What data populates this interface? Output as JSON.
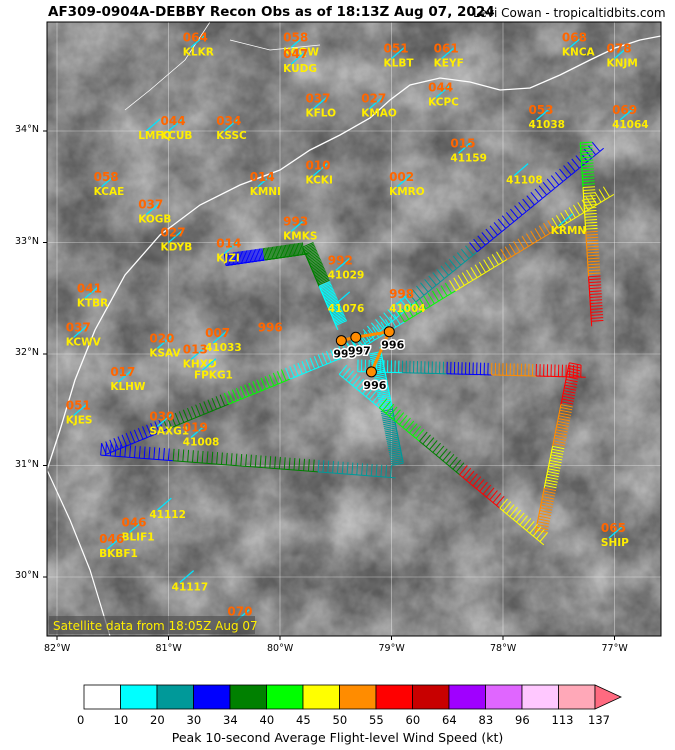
{
  "header": {
    "title": "AF309-0904A-DEBBY Recon Obs as of 18:13Z Aug 07, 2024",
    "credit": "Levi Cowan - tropicaltidbits.com"
  },
  "map": {
    "sat_caption": "Satellite data from 18:05Z Aug 07",
    "lat_labels": [
      "34°N",
      "33°N",
      "32°N",
      "31°N",
      "30°N"
    ],
    "lon_labels": [
      "82°W",
      "81°W",
      "80°W",
      "79°W",
      "78°W",
      "77°W"
    ],
    "colors": {
      "station_value": "#ff6600",
      "station_id": "#ffee00",
      "pressure_label": "#000000",
      "coast": "#ffffff"
    },
    "stations": [
      {
        "id": "KLKR",
        "val": "064",
        "lon": -80.8,
        "lat": 34.75
      },
      {
        "id": "KCQW",
        "val": "058",
        "lon": -79.9,
        "lat": 34.75
      },
      {
        "id": "KUDG",
        "val": "047",
        "lon": -79.9,
        "lat": 34.6
      },
      {
        "id": "KLBT",
        "val": "051",
        "lon": -79.0,
        "lat": 34.65
      },
      {
        "id": "KEYF",
        "val": "061",
        "lon": -78.55,
        "lat": 34.65
      },
      {
        "id": "KNCA",
        "val": "068",
        "lon": -77.4,
        "lat": 34.75
      },
      {
        "id": "KNJM",
        "val": "078",
        "lon": -77.0,
        "lat": 34.65
      },
      {
        "id": "KFLO",
        "val": "037",
        "lon": -79.7,
        "lat": 34.2
      },
      {
        "id": "KMAO",
        "val": "027",
        "lon": -79.2,
        "lat": 34.2
      },
      {
        "id": "KCPC",
        "val": "044",
        "lon": -78.6,
        "lat": 34.3
      },
      {
        "id": "41038",
        "val": "053",
        "lon": -77.7,
        "lat": 34.1
      },
      {
        "id": "41064",
        "val": "069",
        "lon": -76.95,
        "lat": 34.1
      },
      {
        "id": "KCUB",
        "val": "044",
        "lon": -81.0,
        "lat": 34.0
      },
      {
        "id": "KSSC",
        "val": "034",
        "lon": -80.5,
        "lat": 34.0
      },
      {
        "id": "LMFQ",
        "val": "",
        "lon": -81.2,
        "lat": 34.0
      },
      {
        "id": "KCAE",
        "val": "058",
        "lon": -81.6,
        "lat": 33.5
      },
      {
        "id": "KMNI",
        "val": "014",
        "lon": -80.2,
        "lat": 33.5
      },
      {
        "id": "KCKI",
        "val": "010",
        "lon": -79.7,
        "lat": 33.6
      },
      {
        "id": "41159",
        "val": "015",
        "lon": -78.4,
        "lat": 33.8
      },
      {
        "id": "KMRO",
        "val": "002",
        "lon": -78.95,
        "lat": 33.5
      },
      {
        "id": "41108",
        "val": "",
        "lon": -77.9,
        "lat": 33.6
      },
      {
        "id": "KRMN",
        "val": "",
        "lon": -77.5,
        "lat": 33.15
      },
      {
        "id": "KOGB",
        "val": "037",
        "lon": -81.2,
        "lat": 33.25
      },
      {
        "id": "KMKS",
        "val": "993",
        "lon": -79.9,
        "lat": 33.1
      },
      {
        "id": "KDYB",
        "val": "027",
        "lon": -81.0,
        "lat": 33.0
      },
      {
        "id": "KJZI",
        "val": "014",
        "lon": -80.5,
        "lat": 32.9
      },
      {
        "id": "41029",
        "val": "992",
        "lon": -79.5,
        "lat": 32.75
      },
      {
        "id": "KTBR",
        "val": "041",
        "lon": -81.75,
        "lat": 32.5
      },
      {
        "id": "KCWV",
        "val": "037",
        "lon": -81.85,
        "lat": 32.15
      },
      {
        "id": "41076",
        "val": "",
        "lon": -79.5,
        "lat": 32.45
      },
      {
        "id": "41004",
        "val": "998",
        "lon": -78.95,
        "lat": 32.45
      },
      {
        "id": "KSAV",
        "val": "020",
        "lon": -81.1,
        "lat": 32.05
      },
      {
        "id": "KHXD",
        "val": "013",
        "lon": -80.8,
        "lat": 31.95
      },
      {
        "id": "41033",
        "val": "007",
        "lon": -80.6,
        "lat": 32.1
      },
      {
        "id": "FPKG1",
        "val": "",
        "lon": -80.7,
        "lat": 31.85
      },
      {
        "id": "KLHW",
        "val": "017",
        "lon": -81.45,
        "lat": 31.75
      },
      {
        "id": "KJES",
        "val": "051",
        "lon": -81.85,
        "lat": 31.45
      },
      {
        "id": "SAXG1",
        "val": "030",
        "lon": -81.1,
        "lat": 31.35
      },
      {
        "id": "41008",
        "val": "019",
        "lon": -80.8,
        "lat": 31.25
      },
      {
        "id": "41112",
        "val": "",
        "lon": -81.1,
        "lat": 30.6
      },
      {
        "id": "BLIF1",
        "val": "046",
        "lon": -81.35,
        "lat": 30.4
      },
      {
        "id": "BKBF1",
        "val": "046",
        "lon": -81.55,
        "lat": 30.25
      },
      {
        "id": "41117",
        "val": "",
        "lon": -80.9,
        "lat": 29.95
      },
      {
        "id": "",
        "val": "070",
        "lon": -80.4,
        "lat": 29.6
      },
      {
        "id": "SHIP",
        "val": "065",
        "lon": -77.05,
        "lat": 30.35
      }
    ],
    "extra_values": [
      {
        "val": "996",
        "lon": -80.2,
        "lat": 32.2
      }
    ],
    "pressures": [
      {
        "val": "999",
        "lon": -79.45,
        "lat": 32.12
      },
      {
        "val": "997",
        "lon": -79.32,
        "lat": 32.15
      },
      {
        "val": "996",
        "lon": -79.02,
        "lat": 32.2
      },
      {
        "val": "996",
        "lon": -79.18,
        "lat": 31.84
      }
    ]
  },
  "legend": {
    "ticks": [
      "0",
      "10",
      "20",
      "30",
      "34",
      "40",
      "45",
      "50",
      "55",
      "60",
      "64",
      "83",
      "96",
      "113",
      "137"
    ],
    "colors": [
      "#ffffff",
      "#00ffff",
      "#009999",
      "#0000ff",
      "#008000",
      "#00ff00",
      "#ffff00",
      "#ff8c00",
      "#ff0000",
      "#c80000",
      "#a000ff",
      "#e066ff",
      "#ffc8ff",
      "#ffa8b8",
      "#ff6a80"
    ],
    "title": "Peak 10-second Average Flight-level Wind Speed (kt)"
  }
}
